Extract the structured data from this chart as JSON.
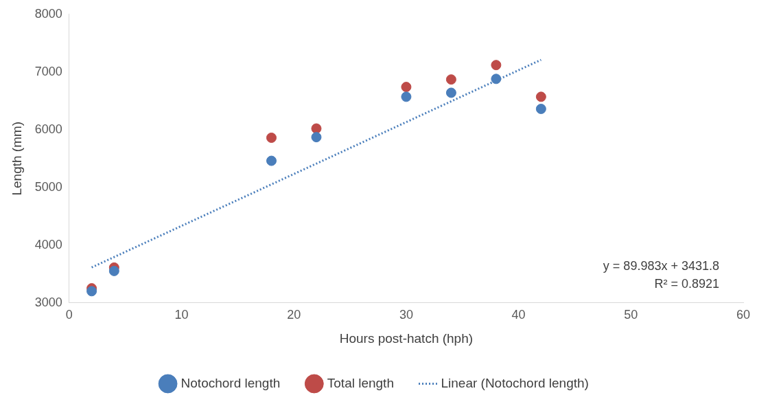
{
  "chart_data": {
    "type": "scatter",
    "xlabel": "Hours post-hatch (hph)",
    "ylabel": "Length (mm)",
    "xlim": [
      0,
      60
    ],
    "xticks": [
      0,
      10,
      20,
      30,
      40,
      50,
      60
    ],
    "ylim": [
      3000,
      8000
    ],
    "yticks": [
      3000,
      4000,
      5000,
      6000,
      7000,
      8000
    ],
    "x": [
      2,
      4,
      18,
      22,
      30,
      34,
      38,
      42
    ],
    "series": [
      {
        "name": "Notochord length",
        "color": "#4a7ebb",
        "values": [
          3200,
          3550,
          5460,
          5870,
          6570,
          6640,
          6880,
          6360
        ],
        "marker": "circle"
      },
      {
        "name": "Total length",
        "color": "#be4b48",
        "values": [
          3250,
          3610,
          5860,
          6020,
          6740,
          6870,
          7120,
          6570
        ],
        "marker": "circle"
      },
      {
        "name": "Linear (Notochord length)",
        "type": "line",
        "line_style": "dotted",
        "color": "#4a7ebb",
        "x": [
          2,
          42
        ],
        "values": [
          3612,
          7211
        ],
        "marker": "none"
      }
    ],
    "annotations": [
      "y = 89.983x + 3431.8",
      "R² = 0.8921"
    ],
    "grid": false,
    "legend": "bottom"
  }
}
